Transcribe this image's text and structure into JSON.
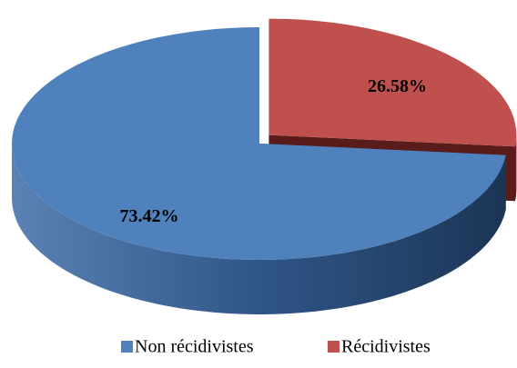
{
  "chart_data": {
    "type": "pie3d",
    "categories": [
      "Non récidivistes",
      "Récidivistes"
    ],
    "values": [
      73.42,
      26.58
    ],
    "value_labels": [
      "73.42%",
      "26.58%"
    ],
    "colors": [
      "#4f81bd",
      "#c0504d"
    ],
    "legend": "bottom"
  }
}
